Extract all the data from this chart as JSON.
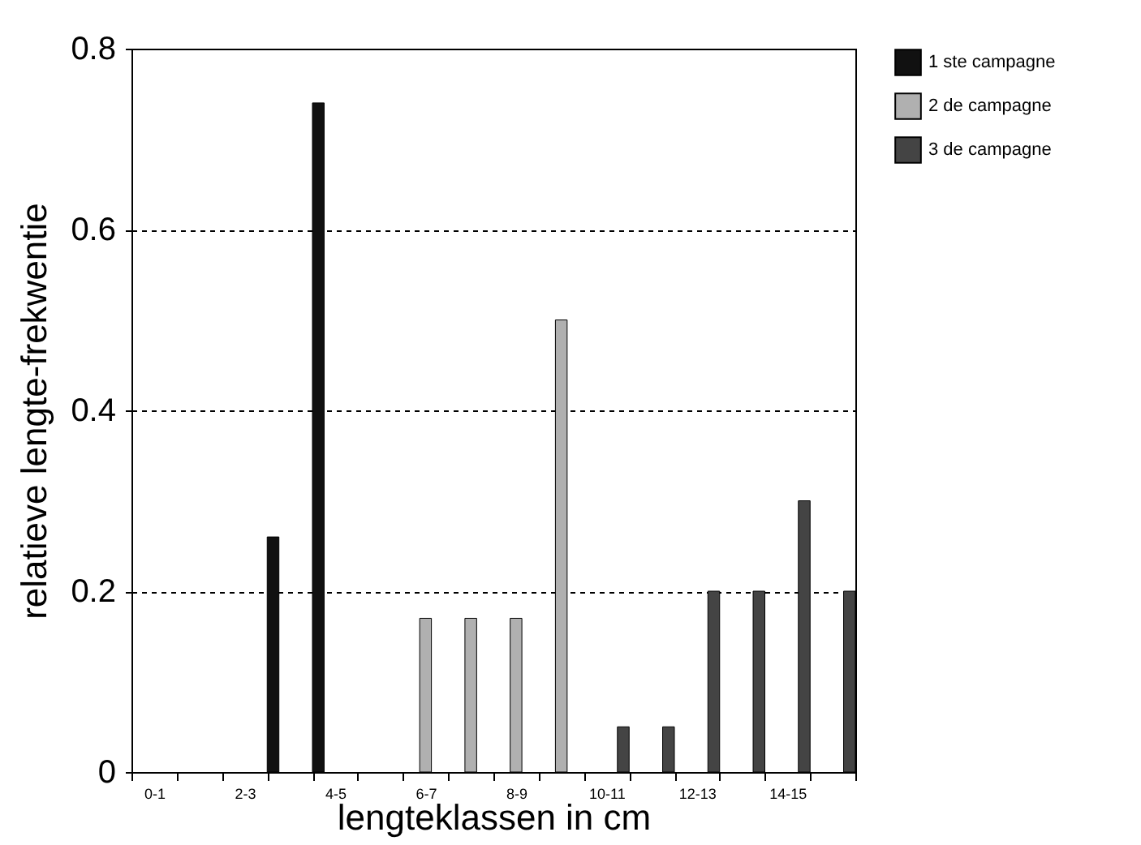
{
  "chart_data": {
    "type": "bar",
    "xlabel": "lengteklassen in cm",
    "ylabel": "relatieve lengte-frekwentie",
    "categories": [
      "0-1",
      null,
      "2-3",
      null,
      "4-5",
      null,
      "6-7",
      null,
      "8-9",
      null,
      "10-11",
      null,
      "12-13",
      null,
      "14-15",
      null
    ],
    "series": [
      {
        "name": "1 ste campagne",
        "color": "#111111",
        "values": [
          null,
          null,
          null,
          0.26,
          0.74,
          null,
          null,
          null,
          null,
          null,
          null,
          null,
          null,
          null,
          null,
          null
        ]
      },
      {
        "name": "2 de campagne",
        "color": "#b0b0b0",
        "values": [
          null,
          null,
          null,
          null,
          null,
          null,
          0.17,
          0.17,
          0.17,
          0.5,
          null,
          null,
          null,
          null,
          null,
          null
        ]
      },
      {
        "name": "3 de campagne",
        "color": "#444444",
        "values": [
          null,
          null,
          null,
          null,
          null,
          null,
          null,
          null,
          null,
          null,
          0.05,
          0.05,
          0.2,
          0.2,
          0.3,
          0.2
        ]
      }
    ],
    "ylim": [
      0,
      0.8
    ],
    "yticks": [
      0,
      0.2,
      0.4,
      0.6,
      0.8
    ],
    "grid": "y",
    "legend": "right"
  }
}
